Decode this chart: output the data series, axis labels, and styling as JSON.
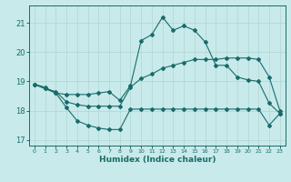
{
  "xlabel": "Humidex (Indice chaleur)",
  "bg_color": "#c8eaea",
  "grid_color": "#b0d4d4",
  "line_color": "#1a6b6b",
  "xlim": [
    -0.5,
    23.5
  ],
  "ylim": [
    16.8,
    21.6
  ],
  "yticks": [
    17,
    18,
    19,
    20,
    21
  ],
  "xticks": [
    0,
    1,
    2,
    3,
    4,
    5,
    6,
    7,
    8,
    9,
    10,
    11,
    12,
    13,
    14,
    15,
    16,
    17,
    18,
    19,
    20,
    21,
    22,
    23
  ],
  "line1_x": [
    0,
    1,
    2,
    3,
    4,
    5,
    6,
    7,
    8,
    9,
    10,
    11,
    12,
    13,
    14,
    15,
    16,
    17,
    18,
    19,
    20,
    21,
    22,
    23
  ],
  "line1_y": [
    18.9,
    18.8,
    18.6,
    18.55,
    18.55,
    18.55,
    18.6,
    18.65,
    18.35,
    18.85,
    20.4,
    20.6,
    21.2,
    20.75,
    20.9,
    20.75,
    20.35,
    19.55,
    19.55,
    19.15,
    19.05,
    19.0,
    18.25,
    17.9
  ],
  "line2_x": [
    0,
    1,
    2,
    3,
    4,
    5,
    6,
    7,
    8,
    9,
    10,
    11,
    12,
    13,
    14,
    15,
    16,
    17,
    18,
    19,
    20,
    21,
    22,
    23
  ],
  "line2_y": [
    18.9,
    18.75,
    18.6,
    18.1,
    17.65,
    17.5,
    17.4,
    17.35,
    17.35,
    18.05,
    18.05,
    18.05,
    18.05,
    18.05,
    18.05,
    18.05,
    18.05,
    18.05,
    18.05,
    18.05,
    18.05,
    18.05,
    17.5,
    17.9
  ],
  "line3_x": [
    0,
    1,
    2,
    3,
    4,
    5,
    6,
    7,
    8,
    9,
    10,
    11,
    12,
    13,
    14,
    15,
    16,
    17,
    18,
    19,
    20,
    21,
    22,
    23
  ],
  "line3_y": [
    18.9,
    18.75,
    18.65,
    18.3,
    18.2,
    18.15,
    18.15,
    18.15,
    18.15,
    18.8,
    19.1,
    19.25,
    19.45,
    19.55,
    19.65,
    19.75,
    19.75,
    19.75,
    19.8,
    19.8,
    19.8,
    19.75,
    19.15,
    18.0
  ]
}
